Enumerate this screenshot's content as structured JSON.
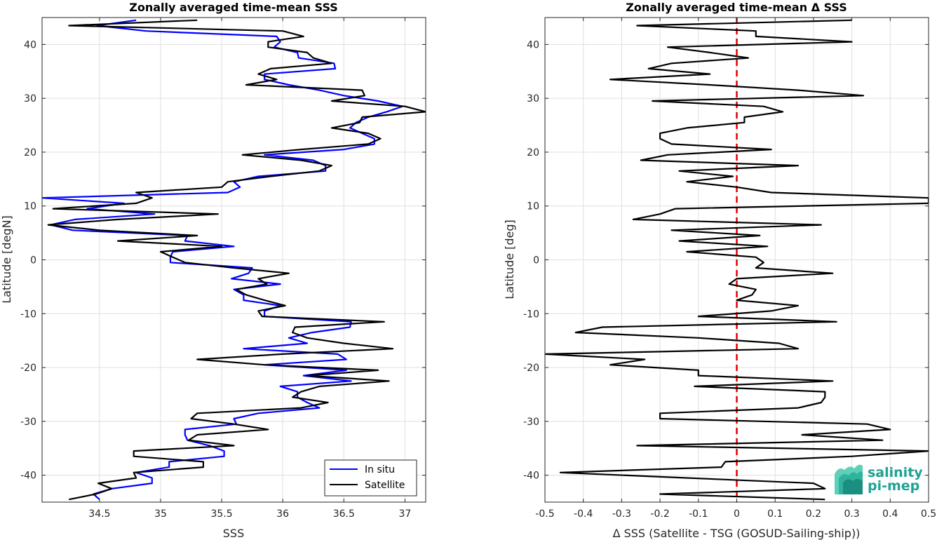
{
  "chart_data": [
    {
      "type": "line",
      "title": "Zonally averaged time-mean SSS",
      "xlabel": "SSS",
      "ylabel": "Latitude [degN]",
      "xlim": [
        34.03,
        37.17
      ],
      "ylim": [
        -45,
        45
      ],
      "xticks": [
        34.5,
        35,
        35.5,
        36,
        36.5,
        37
      ],
      "yticks": [
        -40,
        -30,
        -20,
        -10,
        0,
        10,
        20,
        30,
        40
      ],
      "xtick_labels": [
        "34.5",
        "35",
        "35.5",
        "36",
        "36.5",
        "37"
      ],
      "ytick_labels": [
        "-40",
        "-30",
        "-20",
        "-10",
        "0",
        "10",
        "20",
        "30",
        "40"
      ],
      "grid": true,
      "legend": "bottom-right",
      "series": [
        {
          "name": "In situ",
          "color": "#0000ff",
          "lat": [
            44.5,
            43.5,
            42.5,
            41.5,
            40.5,
            39.5,
            38.5,
            37.5,
            36.5,
            35.5,
            34.5,
            33.5,
            32.5,
            31.5,
            30.5,
            29.5,
            28.5,
            27.5,
            26.5,
            25.5,
            24.5,
            23.5,
            22.5,
            21.5,
            20.5,
            19.5,
            18.5,
            17.5,
            16.5,
            15.5,
            14.5,
            13.5,
            12.5,
            11.5,
            10.5,
            9.5,
            8.5,
            7.5,
            6.5,
            5.5,
            4.5,
            3.5,
            2.5,
            1.5,
            0.5,
            -0.5,
            -1.5,
            -2.5,
            -3.5,
            -4.5,
            -5.5,
            -6.5,
            -7.5,
            -8.5,
            -9.5,
            -10.5,
            -11.5,
            -12.5,
            -13.5,
            -14.5,
            -15.5,
            -16.5,
            -17.5,
            -18.5,
            -19.5,
            -20.5,
            -21.5,
            -22.5,
            -23.5,
            -24.5,
            -25.5,
            -26.5,
            -27.5,
            -28.5,
            -29.5,
            -30.5,
            -31.5,
            -32.5,
            -33.5,
            -34.5,
            -35.5,
            -36.5,
            -37.5,
            -38.5,
            -39.5,
            -40.5,
            -41.5,
            -42.5,
            -43.5,
            -44.5
          ],
          "sss": [
            34.8,
            34.48,
            34.88,
            35.95,
            35.98,
            35.93,
            36.12,
            36.13,
            36.42,
            36.43,
            35.85,
            35.85,
            36.05,
            36.3,
            36.5,
            36.78,
            36.98,
            36.85,
            36.7,
            36.6,
            36.55,
            36.65,
            36.75,
            36.75,
            36.5,
            35.85,
            36.25,
            36.35,
            36.35,
            35.8,
            35.6,
            35.65,
            35.55,
            34.03,
            34.7,
            34.4,
            34.95,
            34.3,
            34.1,
            34.28,
            35.22,
            35.2,
            35.6,
            35.1,
            35.08,
            35.08,
            35.75,
            35.72,
            35.58,
            35.98,
            35.6,
            35.68,
            35.68,
            35.98,
            35.85,
            35.85,
            36.56,
            36.55,
            36.24,
            36.05,
            36.2,
            35.68,
            36.45,
            36.52,
            35.85,
            36.52,
            36.17,
            36.56,
            35.98,
            36.12,
            36.12,
            36.2,
            36.3,
            35.8,
            35.6,
            35.62,
            35.2,
            35.2,
            35.22,
            35.4,
            35.52,
            35.52,
            35.07,
            35.07,
            34.8,
            34.93,
            34.93,
            34.6,
            34.45,
            34.5
          ],
          "_note": "values traced from plot"
        },
        {
          "name": "Satellite",
          "color": "#000000",
          "lat": [
            44.5,
            43.5,
            42.5,
            41.5,
            40.5,
            39.5,
            38.5,
            37.5,
            36.5,
            35.5,
            34.5,
            33.5,
            32.5,
            31.5,
            30.5,
            29.5,
            28.5,
            27.5,
            26.5,
            25.5,
            24.5,
            23.5,
            22.5,
            21.5,
            20.5,
            19.5,
            18.5,
            17.5,
            16.5,
            15.5,
            14.5,
            13.5,
            12.5,
            11.5,
            10.5,
            9.5,
            8.5,
            7.5,
            6.5,
            5.5,
            4.5,
            3.5,
            2.5,
            1.5,
            0.5,
            -0.5,
            -1.5,
            -2.5,
            -3.5,
            -4.5,
            -5.5,
            -6.5,
            -7.5,
            -8.5,
            -9.5,
            -10.5,
            -11.5,
            -12.5,
            -13.5,
            -14.5,
            -15.5,
            -16.5,
            -17.5,
            -18.5,
            -19.5,
            -20.5,
            -21.5,
            -22.5,
            -23.5,
            -24.5,
            -25.5,
            -26.5,
            -27.5,
            -28.5,
            -29.5,
            -30.5,
            -31.5,
            -32.5,
            -33.5,
            -34.5,
            -35.5,
            -36.5,
            -37.5,
            -38.5,
            -39.5,
            -40.5,
            -41.5,
            -42.5,
            -43.5,
            -44.5
          ],
          "sss": [
            35.3,
            34.25,
            36.0,
            36.17,
            35.88,
            35.88,
            36.2,
            36.25,
            36.4,
            35.9,
            35.8,
            35.95,
            35.7,
            36.65,
            36.67,
            36.4,
            37.0,
            37.17,
            36.65,
            36.63,
            36.4,
            36.7,
            36.8,
            36.7,
            36.15,
            35.67,
            36.15,
            36.4,
            36.3,
            35.9,
            35.55,
            35.5,
            34.8,
            34.93,
            34.8,
            34.12,
            35.47,
            34.65,
            34.08,
            34.5,
            35.3,
            34.65,
            35.5,
            35.0,
            35.1,
            35.2,
            35.6,
            36.05,
            35.8,
            35.87,
            35.62,
            35.7,
            35.85,
            36.02,
            35.8,
            35.83,
            36.83,
            36.1,
            36.08,
            36.2,
            36.5,
            36.9,
            36.0,
            35.3,
            35.85,
            36.78,
            36.2,
            36.87,
            36.3,
            36.15,
            36.08,
            36.37,
            36.15,
            35.3,
            35.25,
            35.6,
            35.88,
            35.3,
            35.23,
            35.6,
            34.78,
            34.78,
            35.35,
            35.35,
            34.78,
            34.8,
            34.49,
            34.6,
            34.47,
            34.25
          ],
          "_note": "values traced from plot"
        }
      ]
    },
    {
      "type": "line",
      "title": "Zonally averaged time-mean Δ SSS",
      "xlabel": "Δ SSS (Satellite - TSG (GOSUD-Sailing-ship))",
      "ylabel": "Latitude [deg]",
      "xlim": [
        -0.5,
        0.5
      ],
      "ylim": [
        -45,
        45
      ],
      "xticks": [
        -0.5,
        -0.4,
        -0.3,
        -0.2,
        -0.1,
        0,
        0.1,
        0.2,
        0.3,
        0.4,
        0.5
      ],
      "yticks": [
        -40,
        -30,
        -20,
        -10,
        0,
        10,
        20,
        30,
        40
      ],
      "xtick_labels": [
        "-0.5",
        "-0.4",
        "-0.3",
        "-0.2",
        "-0.1",
        "0",
        "0.1",
        "0.2",
        "0.3",
        "0.4",
        "0.5"
      ],
      "ytick_labels": [
        "-40",
        "-30",
        "-20",
        "-10",
        "0",
        "10",
        "20",
        "30",
        "40"
      ],
      "grid": true,
      "reference_line": {
        "x": 0,
        "color": "#e60000",
        "style": "dashed"
      },
      "series": [
        {
          "name": "",
          "color": "#000000",
          "lat": [
            44.5,
            43.5,
            42.5,
            41.5,
            40.5,
            39.5,
            38.5,
            37.5,
            36.5,
            35.5,
            34.5,
            33.5,
            32.5,
            31.5,
            30.5,
            29.5,
            28.5,
            27.5,
            26.5,
            25.5,
            24.5,
            23.5,
            22.5,
            21.5,
            20.5,
            19.5,
            18.5,
            17.5,
            16.5,
            15.5,
            14.5,
            13.5,
            12.5,
            11.5,
            10.5,
            9.5,
            8.5,
            7.5,
            6.5,
            5.5,
            4.5,
            3.5,
            2.5,
            1.5,
            0.5,
            -0.5,
            -1.5,
            -2.5,
            -3.5,
            -4.5,
            -5.5,
            -6.5,
            -7.5,
            -8.5,
            -9.5,
            -10.5,
            -11.5,
            -12.5,
            -13.5,
            -14.5,
            -15.5,
            -16.5,
            -17.5,
            -18.5,
            -19.5,
            -20.5,
            -21.5,
            -22.5,
            -23.5,
            -24.5,
            -25.5,
            -26.5,
            -27.5,
            -28.5,
            -29.5,
            -30.5,
            -31.5,
            -32.5,
            -33.5,
            -34.5,
            -35.5,
            -36.5,
            -37.5,
            -38.5,
            -39.5,
            -40.5,
            -41.5,
            -42.5,
            -43.5,
            -44.5
          ],
          "dsss": [
            0.3,
            -0.26,
            0.05,
            0.05,
            0.3,
            -0.18,
            -0.07,
            0.03,
            -0.17,
            -0.23,
            -0.07,
            -0.33,
            -0.07,
            0.16,
            0.33,
            -0.22,
            0.07,
            0.12,
            0.02,
            0.02,
            -0.13,
            -0.2,
            -0.2,
            -0.17,
            0.09,
            -0.18,
            -0.25,
            0.16,
            -0.15,
            -0.01,
            -0.13,
            0.0,
            0.09,
            0.5,
            0.5,
            -0.16,
            -0.2,
            -0.27,
            0.22,
            -0.17,
            0.06,
            -0.15,
            0.08,
            -0.13,
            0.05,
            0.07,
            0.05,
            0.25,
            0.0,
            -0.02,
            0.05,
            0.04,
            0.0,
            0.16,
            0.09,
            -0.1,
            0.26,
            -0.35,
            -0.42,
            -0.1,
            0.11,
            0.16,
            -0.5,
            -0.24,
            -0.33,
            -0.1,
            -0.1,
            0.25,
            -0.11,
            0.23,
            0.23,
            0.22,
            0.16,
            -0.2,
            -0.2,
            0.34,
            0.4,
            0.17,
            0.38,
            -0.26,
            0.5,
            0.3,
            -0.03,
            -0.04,
            -0.46,
            -0.13,
            0.2,
            0.23,
            -0.2,
            0.23
          ],
          "_note": "values traced from plot"
        }
      ]
    }
  ],
  "logo": {
    "line1": "salinity",
    "line2": "pi-mep",
    "color": "#1fa394"
  }
}
